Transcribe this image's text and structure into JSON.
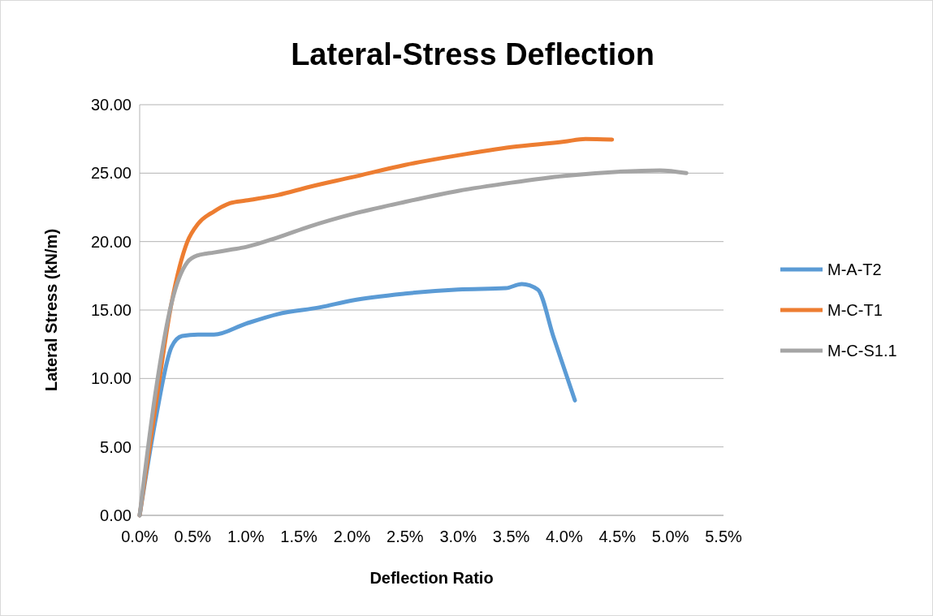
{
  "chart_data": {
    "type": "line",
    "title": "Lateral-Stress Deflection",
    "xlabel": "Deflection Ratio",
    "ylabel": "Lateral Stress (kN/m)",
    "xlim": [
      0,
      5.5
    ],
    "xticks": [
      {
        "value": 0,
        "label": "0.0%"
      },
      {
        "value": 0.5,
        "label": "0.5%"
      },
      {
        "value": 1,
        "label": "1.0%"
      },
      {
        "value": 1.5,
        "label": "1.5%"
      },
      {
        "value": 2,
        "label": "2.0%"
      },
      {
        "value": 2.5,
        "label": "2.5%"
      },
      {
        "value": 3,
        "label": "3.0%"
      },
      {
        "value": 3.5,
        "label": "3.5%"
      },
      {
        "value": 4,
        "label": "4.0%"
      },
      {
        "value": 4.5,
        "label": "4.5%"
      },
      {
        "value": 5,
        "label": "5.0%"
      },
      {
        "value": 5.5,
        "label": "5.5%"
      }
    ],
    "ylim": [
      0,
      30
    ],
    "yticks": [
      {
        "value": 0,
        "label": "0.00"
      },
      {
        "value": 5,
        "label": "5.00"
      },
      {
        "value": 10,
        "label": "10.00"
      },
      {
        "value": 15,
        "label": "15.00"
      },
      {
        "value": 20,
        "label": "20.00"
      },
      {
        "value": 25,
        "label": "25.00"
      },
      {
        "value": 30,
        "label": "30.00"
      }
    ],
    "grid": "y",
    "legend": "right",
    "marker": "none",
    "line_style": "solid",
    "series": [
      {
        "name": "M-A-T2",
        "color": "#5b9bd5",
        "x": [
          0,
          0.15,
          0.3,
          0.4,
          0.55,
          0.7,
          1.0,
          1.3,
          1.7,
          2.0,
          2.5,
          3.0,
          3.45,
          3.6,
          3.75,
          3.9,
          4.1
        ],
        "values": [
          0,
          7,
          12.3,
          13.1,
          13.2,
          13.2,
          14.0,
          14.7,
          15.2,
          15.7,
          16.2,
          16.5,
          16.6,
          16.9,
          16.5,
          13,
          8.4
        ]
      },
      {
        "name": "M-C-T1",
        "color": "#ed7d31",
        "x": [
          0,
          0.15,
          0.3,
          0.45,
          0.55,
          0.7,
          0.85,
          1.0,
          1.3,
          1.6,
          2.0,
          2.5,
          3.0,
          3.5,
          4.0,
          4.2,
          4.45
        ],
        "values": [
          0,
          8,
          15.5,
          20,
          21.3,
          22.2,
          22.8,
          23.0,
          23.4,
          24.0,
          24.7,
          25.6,
          26.3,
          26.9,
          27.3,
          27.5,
          27.45
        ]
      },
      {
        "name": "M-C-S1.1",
        "color": "#a5a5a5",
        "x": [
          0,
          0.15,
          0.3,
          0.45,
          0.55,
          0.7,
          0.85,
          1.0,
          1.3,
          1.6,
          2.0,
          2.5,
          3.0,
          3.5,
          4.0,
          4.5,
          4.9,
          5.15
        ],
        "values": [
          0,
          9,
          15.5,
          18.5,
          19.0,
          19.2,
          19.4,
          19.6,
          20.3,
          21.1,
          22.0,
          22.9,
          23.7,
          24.3,
          24.8,
          25.1,
          25.2,
          25.0
        ]
      }
    ]
  }
}
